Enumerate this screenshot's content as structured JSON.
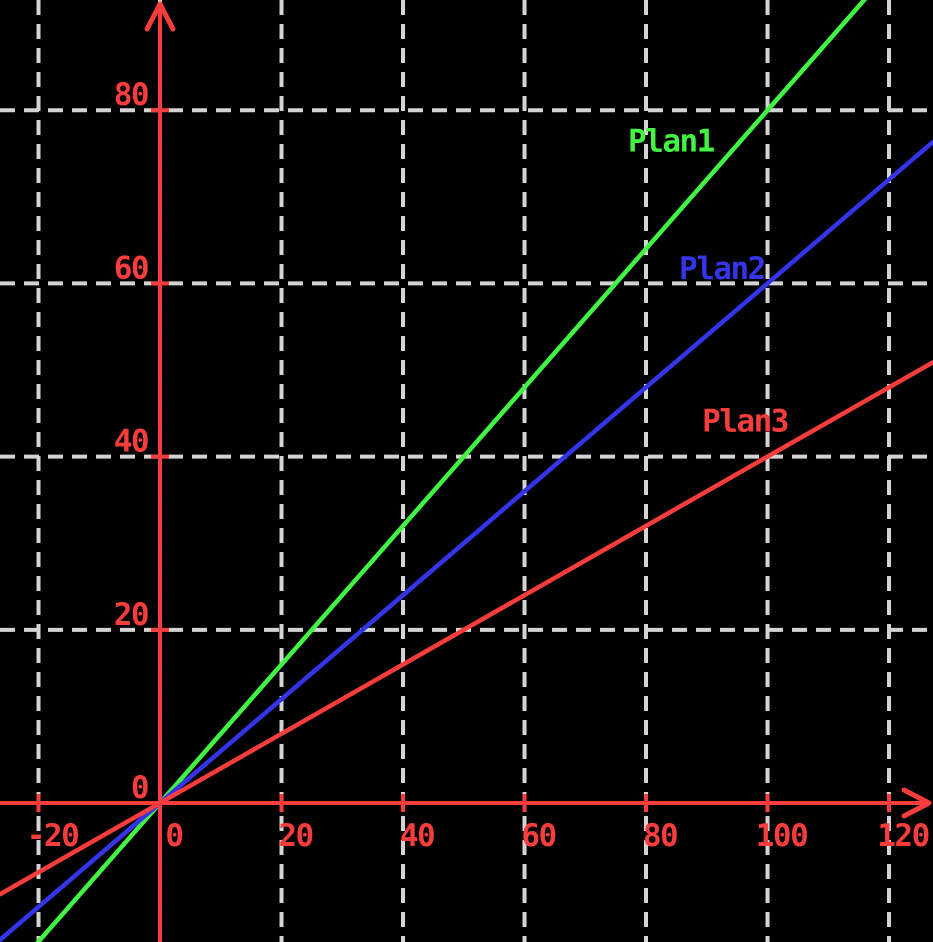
{
  "chart_data": {
    "type": "line",
    "title": "",
    "subtitle": "",
    "xlabel": "",
    "ylabel": "",
    "xlim": [
      -26.34,
      127.24
    ],
    "ylim": [
      -16.05,
      92.73
    ],
    "x_ticks": [
      -20,
      0,
      20,
      40,
      60,
      80,
      100,
      120
    ],
    "y_ticks": [
      0,
      20,
      40,
      60,
      80
    ],
    "x_tick_labels": [
      "-20",
      "0",
      "20",
      "40",
      "60",
      "80",
      "100",
      "120"
    ],
    "y_tick_labels": [
      "0",
      "20",
      "40",
      "60",
      "80"
    ],
    "grid": true,
    "grid_style": "dashed",
    "legend_position": "inline-labels",
    "background_color": "#000000",
    "axis_color": "#f93c3c",
    "tick_label_color": "#f93c3c",
    "grid_color": "#d4d4d4",
    "series": [
      {
        "name": "Plan1",
        "color": "#43f543",
        "equation": "y = 0.8x",
        "slope": 0.8,
        "intercept": 0,
        "x": [
          0,
          20,
          40,
          60,
          80,
          100,
          120
        ],
        "values": [
          0,
          16,
          32,
          48,
          64,
          80,
          96
        ],
        "label": {
          "text": "Plan1",
          "x": 84.1,
          "y": 76.5
        }
      },
      {
        "name": "Plan2",
        "color": "#3434ea",
        "equation": "y = 0.6x",
        "slope": 0.6,
        "intercept": 0,
        "x": [
          0,
          20,
          40,
          60,
          80,
          100,
          120
        ],
        "values": [
          0,
          12,
          24,
          36,
          48,
          60,
          72
        ],
        "label": {
          "text": "Plan2",
          "x": 92.5,
          "y": 61.8
        }
      },
      {
        "name": "Plan3",
        "color": "#f93c3c",
        "equation": "y = 0.4x",
        "slope": 0.4,
        "intercept": 0,
        "x": [
          0,
          20,
          40,
          60,
          80,
          100,
          120
        ],
        "values": [
          0,
          8,
          16,
          24,
          32,
          40,
          48
        ],
        "label": {
          "text": "Plan3",
          "x": 96.3,
          "y": 44.2
        }
      }
    ]
  }
}
